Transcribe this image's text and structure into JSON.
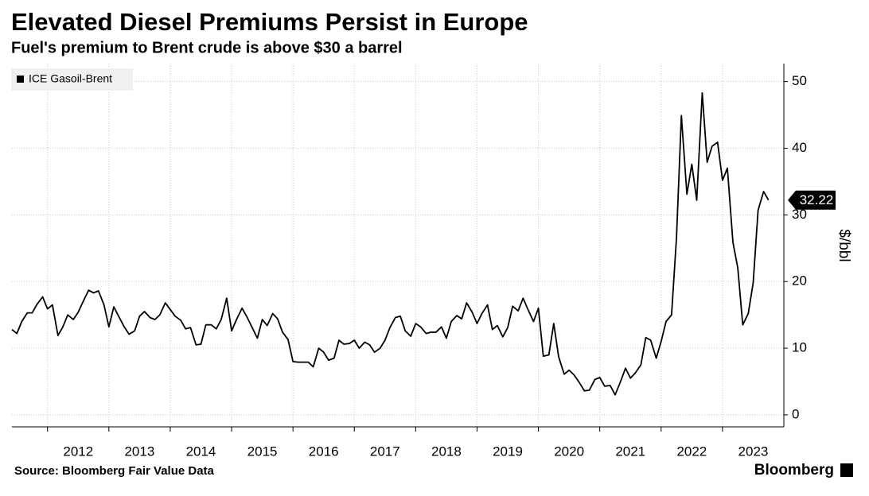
{
  "chart_data": {
    "type": "line",
    "title": "Elevated Diesel Premiums Persist in Europe",
    "subtitle": "Fuel's premium to Brent crude is above $30 a barrel",
    "source": "Source: Bloomberg Fair Value Data",
    "brand": "Bloomberg",
    "y_label": "$/bbl",
    "legend": "upper left",
    "grid": true,
    "x": [
      2011.42,
      2011.5,
      2011.58,
      2011.67,
      2011.75,
      2011.83,
      2011.92,
      2012,
      2012.08,
      2012.17,
      2012.25,
      2012.33,
      2012.42,
      2012.5,
      2012.58,
      2012.67,
      2012.75,
      2012.83,
      2012.92,
      2013,
      2013.08,
      2013.17,
      2013.25,
      2013.33,
      2013.42,
      2013.5,
      2013.58,
      2013.67,
      2013.75,
      2013.83,
      2013.92,
      2014,
      2014.08,
      2014.17,
      2014.25,
      2014.33,
      2014.42,
      2014.5,
      2014.58,
      2014.67,
      2014.75,
      2014.83,
      2014.92,
      2015,
      2015.08,
      2015.17,
      2015.25,
      2015.33,
      2015.42,
      2015.5,
      2015.58,
      2015.67,
      2015.75,
      2015.83,
      2015.92,
      2016,
      2016.08,
      2016.17,
      2016.25,
      2016.33,
      2016.42,
      2016.5,
      2016.58,
      2016.67,
      2016.75,
      2016.83,
      2016.92,
      2017,
      2017.08,
      2017.17,
      2017.25,
      2017.33,
      2017.42,
      2017.5,
      2017.58,
      2017.67,
      2017.75,
      2017.83,
      2017.92,
      2018,
      2018.08,
      2018.17,
      2018.25,
      2018.33,
      2018.42,
      2018.5,
      2018.58,
      2018.67,
      2018.75,
      2018.83,
      2018.92,
      2019,
      2019.08,
      2019.17,
      2019.25,
      2019.33,
      2019.42,
      2019.5,
      2019.58,
      2019.67,
      2019.75,
      2019.83,
      2019.92,
      2020,
      2020.08,
      2020.17,
      2020.25,
      2020.33,
      2020.42,
      2020.5,
      2020.58,
      2020.67,
      2020.75,
      2020.83,
      2020.92,
      2021,
      2021.08,
      2021.17,
      2021.25,
      2021.33,
      2021.42,
      2021.5,
      2021.58,
      2021.67,
      2021.75,
      2021.83,
      2021.92,
      2022,
      2022.08,
      2022.17,
      2022.25,
      2022.33,
      2022.42,
      2022.5,
      2022.58,
      2022.67,
      2022.75,
      2022.83,
      2022.92,
      2023,
      2023.08,
      2023.17,
      2023.25,
      2023.33,
      2023.42,
      2023.5,
      2023.58,
      2023.67,
      2023.75
    ],
    "series": [
      {
        "name": "ICE Gasoil-Brent",
        "color": "#000000",
        "values": [
          12.8,
          12.2,
          14,
          15.3,
          15.3,
          16.6,
          17.7,
          15.9,
          16.5,
          11.9,
          13.2,
          15,
          14.3,
          15.4,
          17,
          18.7,
          18.3,
          18.6,
          16.5,
          13.2,
          16.2,
          14.6,
          13.2,
          12.1,
          12.6,
          14.8,
          15.5,
          14.6,
          14.3,
          15,
          16.8,
          15.8,
          14.8,
          14.2,
          12.9,
          13.1,
          10.5,
          10.6,
          13.5,
          13.5,
          12.9,
          14.3,
          17.5,
          12.6,
          14.3,
          16,
          14.7,
          13.2,
          11.5,
          14.3,
          13.4,
          15.2,
          14.4,
          12.4,
          11.3,
          8,
          7.9,
          7.9,
          7.9,
          7.2,
          10,
          9.4,
          8.2,
          8.5,
          11.2,
          10.6,
          10.7,
          11.2,
          10,
          10.9,
          10.5,
          9.4,
          10,
          11.2,
          13.1,
          14.6,
          14.8,
          12.6,
          11.8,
          13.7,
          13.2,
          12.2,
          12.4,
          12.4,
          13.2,
          11.5,
          14,
          14.9,
          14.4,
          16.8,
          15.4,
          13.7,
          15.2,
          16.5,
          12.8,
          13.4,
          11.7,
          13.1,
          16.3,
          15.6,
          17.5,
          15.8,
          14,
          16,
          8.8,
          9,
          13.7,
          8.7,
          6.1,
          6.7,
          6,
          4.8,
          3.6,
          3.7,
          5.3,
          5.6,
          4.3,
          4.4,
          3,
          4.8,
          7,
          5.5,
          6.3,
          7.5,
          11.6,
          11.2,
          8.5,
          11,
          14,
          15,
          26.5,
          44.9,
          33.1,
          37.6,
          32.2,
          48.3,
          37.9,
          40.3,
          40.9,
          35.2,
          37,
          25.9,
          22,
          13.5,
          15.2,
          19.8,
          30.7,
          33.5,
          32.22
        ]
      }
    ],
    "xlim": [
      2011.42,
      2024.0
    ],
    "xticks": [
      2012,
      2013,
      2014,
      2015,
      2016,
      2017,
      2018,
      2019,
      2020,
      2021,
      2022,
      2023
    ],
    "ylim": [
      -1.8,
      52.7
    ],
    "yticks": [
      0,
      10,
      20,
      30,
      40,
      50
    ]
  }
}
